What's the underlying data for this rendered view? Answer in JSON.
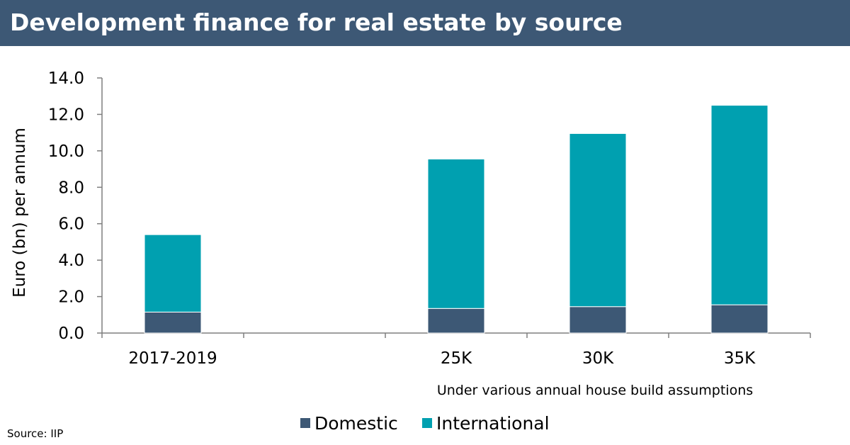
{
  "header": {
    "title": "Development finance for real estate by source"
  },
  "source": "Source: IIP",
  "colors": {
    "header_bg": "#3d5875",
    "domestic": "#3d5875",
    "international": "#00a0b0"
  },
  "chart_data": {
    "type": "bar",
    "stacked": true,
    "title": "Development finance for real estate by source",
    "ylabel": "Euro (bn) per annum",
    "xlabel": "Under various annual house build assumptions",
    "ylim": [
      0,
      14
    ],
    "yticks": [
      "0.0",
      "2.0",
      "4.0",
      "6.0",
      "8.0",
      "10.0",
      "12.0",
      "14.0"
    ],
    "categories": [
      "2017-2019",
      "",
      "25K",
      "30K",
      "35K"
    ],
    "series": [
      {
        "name": "Domestic",
        "color": "#3d5875",
        "values": [
          1.15,
          null,
          1.35,
          1.45,
          1.55
        ]
      },
      {
        "name": "International",
        "color": "#00a0b0",
        "values": [
          4.25,
          null,
          8.2,
          9.5,
          10.95
        ]
      }
    ],
    "legend": "bottom",
    "grid": false
  }
}
